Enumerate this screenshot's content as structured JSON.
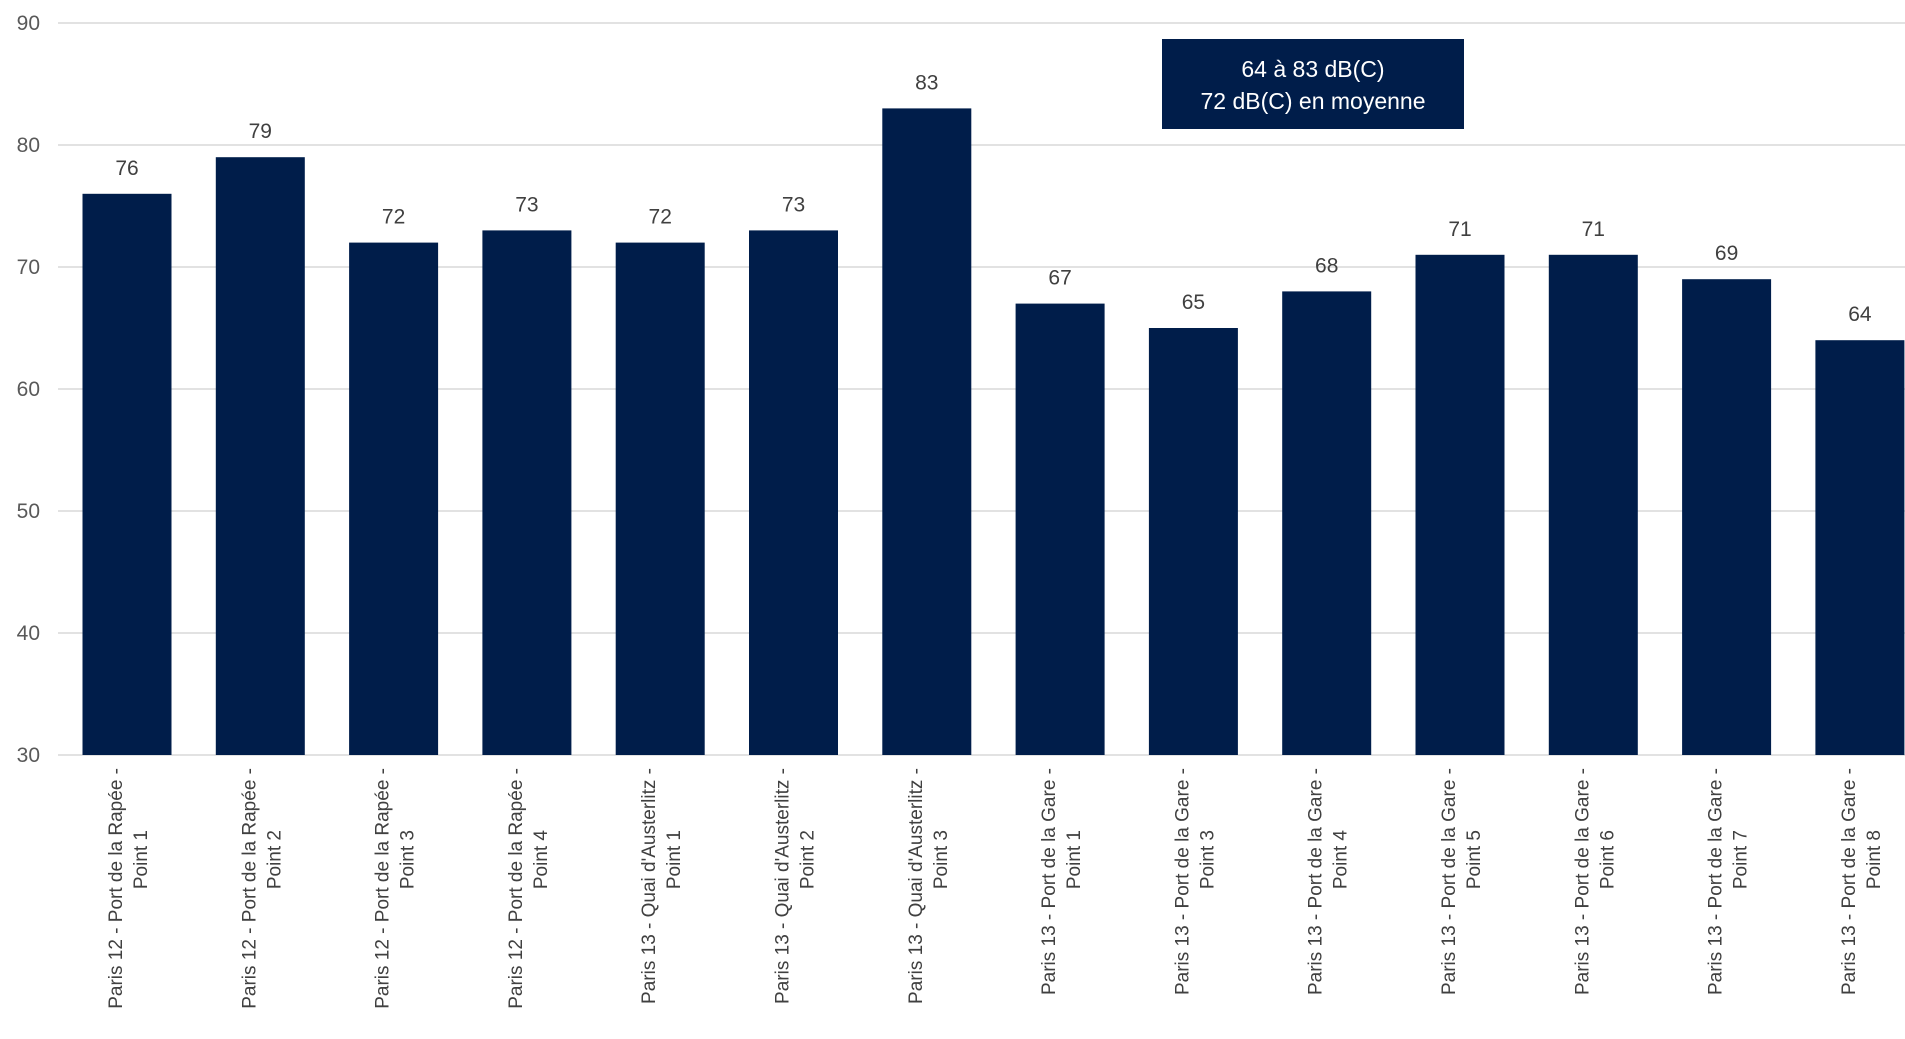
{
  "chart_data": {
    "type": "bar",
    "categories": [
      [
        "Paris 12 - Port de la Rapée -",
        "Point 1"
      ],
      [
        "Paris 12 - Port de la Rapée -",
        "Point 2"
      ],
      [
        "Paris 12 - Port de la Rapée -",
        "Point 3"
      ],
      [
        "Paris 12 - Port de la Rapée -",
        "Point 4"
      ],
      [
        "Paris 13 - Quai d'Austerlitz -",
        "Point 1"
      ],
      [
        "Paris 13 - Quai d'Austerlitz -",
        "Point 2"
      ],
      [
        "Paris 13 - Quai d'Austerlitz -",
        "Point 3"
      ],
      [
        "Paris 13 - Port de la Gare -",
        "Point 1"
      ],
      [
        "Paris 13 - Port de la Gare -",
        "Point 3"
      ],
      [
        "Paris 13 - Port de la Gare -",
        "Point 4"
      ],
      [
        "Paris 13 - Port de la Gare -",
        "Point 5"
      ],
      [
        "Paris 13 - Port de la Gare -",
        "Point 6"
      ],
      [
        "Paris 13 - Port de la Gare -",
        "Point 7"
      ],
      [
        "Paris 13 - Port de la Gare -",
        "Point 8"
      ]
    ],
    "values": [
      76,
      79,
      72,
      73,
      72,
      73,
      83,
      67,
      65,
      68,
      71,
      71,
      69,
      64
    ],
    "data_labels": [
      "76",
      "79",
      "72",
      "73",
      "72",
      "73",
      "83",
      "67",
      "65",
      "68",
      "71",
      "71",
      "69",
      "64"
    ],
    "title": "",
    "xlabel": "",
    "ylabel": "",
    "ylim": [
      30,
      90
    ],
    "yticks": [
      30,
      40,
      50,
      60,
      70,
      80,
      90
    ],
    "ytick_labels": [
      "30",
      "40",
      "50",
      "60",
      "70",
      "80",
      "90"
    ],
    "grid": true,
    "legend": "none",
    "annotation": {
      "lines": [
        "64 à 83 dB(C)",
        "72 dB(C) en moyenne"
      ],
      "placement": "top-center"
    },
    "colors": {
      "bar": "#001d4a",
      "grid": "#d9d9d9",
      "annotation_bg": "#001d4a"
    }
  }
}
